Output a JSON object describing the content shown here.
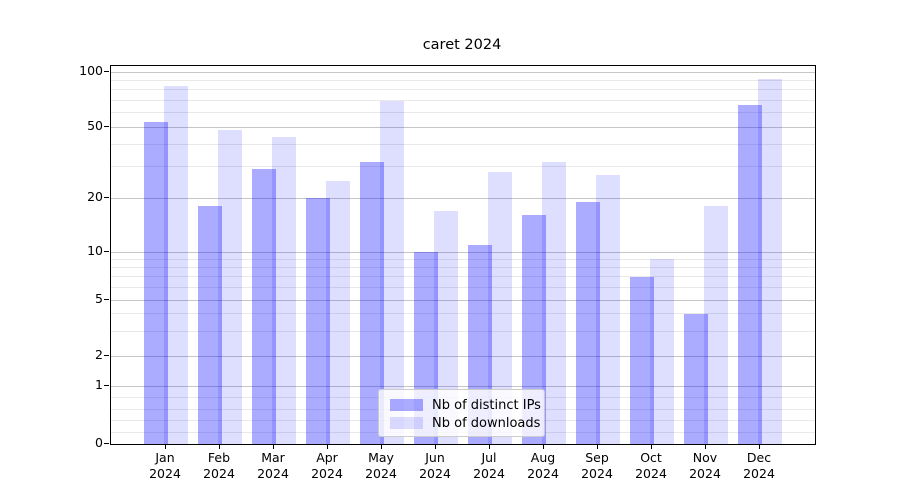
{
  "chart_data": {
    "type": "bar",
    "title": "caret 2024",
    "categories": [
      "Jan 2024",
      "Feb 2024",
      "Mar 2024",
      "Apr 2024",
      "May 2024",
      "Jun 2024",
      "Jul 2024",
      "Aug 2024",
      "Sep 2024",
      "Oct 2024",
      "Nov 2024",
      "Dec 2024"
    ],
    "series": [
      {
        "name": "Nb of distinct IPs",
        "fill": "rgba(0,0,255,0.33)",
        "hex": "#ABABFF",
        "values": [
          53,
          18,
          29,
          20,
          32,
          10,
          11,
          16,
          19,
          7,
          4,
          66
        ]
      },
      {
        "name": "Nb of downloads",
        "fill": "rgba(0,0,255,0.13)",
        "hex": "#DDDDFF",
        "values": [
          84,
          48,
          44,
          25,
          69,
          17,
          28,
          32,
          27,
          9,
          18,
          92
        ]
      }
    ],
    "xlabel": "",
    "ylabel": "",
    "yscale": "symlog",
    "ylim": [
      0,
      108
    ],
    "y_ticks": [
      0,
      1,
      2,
      5,
      10,
      20,
      50,
      100
    ],
    "y_minor_ticks": [
      0.2,
      0.4,
      0.6,
      0.8,
      3,
      4,
      6,
      7,
      8,
      9,
      30,
      40,
      60,
      70,
      80,
      90
    ],
    "grid": "horizontal",
    "legend_position": "lower-center",
    "frame_color": "#000000",
    "background": "#ffffff"
  }
}
